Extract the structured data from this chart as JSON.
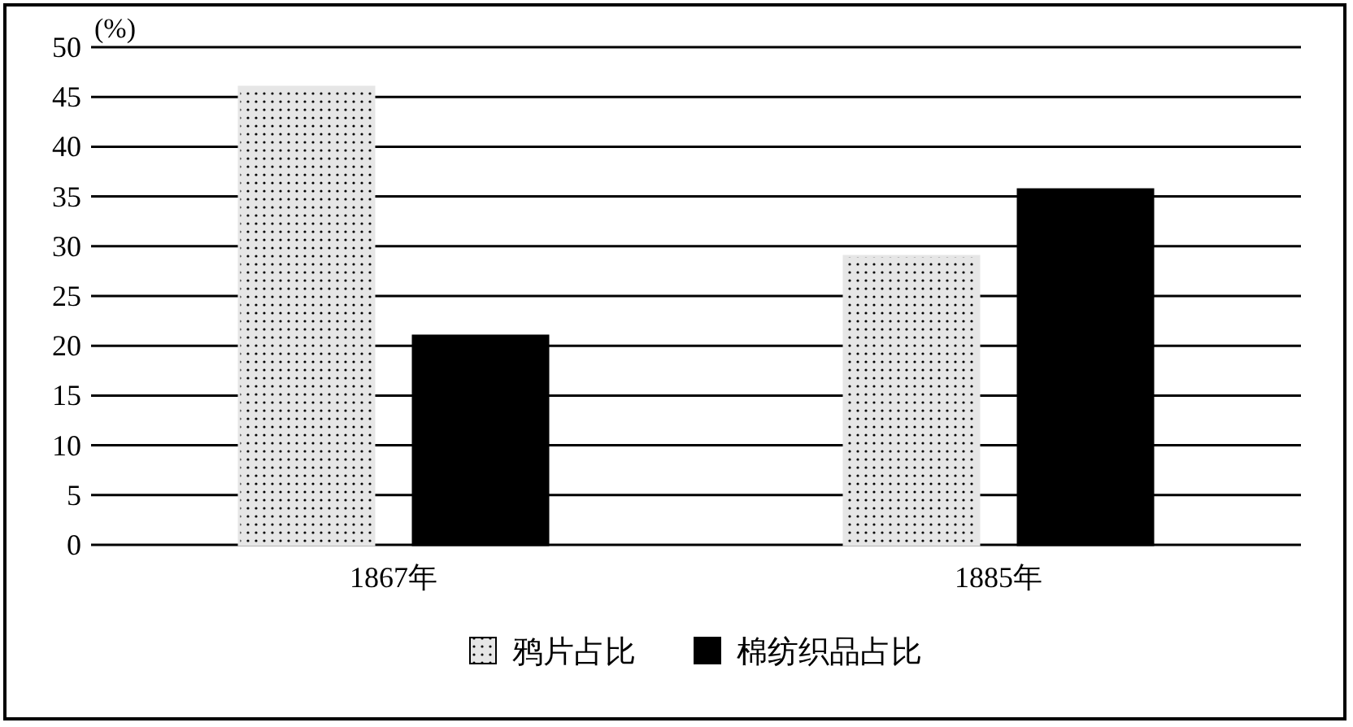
{
  "chart_data": {
    "type": "bar",
    "ylabel": "(%)",
    "categories": [
      "1867年",
      "1885年"
    ],
    "series": [
      {
        "name": "鸦片占比",
        "color": "#e6e6e6",
        "values": [
          46,
          29
        ]
      },
      {
        "name": "棉纺织品占比",
        "color": "#000000",
        "values": [
          21,
          35.7
        ]
      }
    ],
    "ylim": [
      0,
      50
    ],
    "yticks": [
      0,
      5,
      10,
      15,
      20,
      25,
      30,
      35,
      40,
      45,
      50
    ],
    "grid": "y",
    "legend": "bottom"
  }
}
